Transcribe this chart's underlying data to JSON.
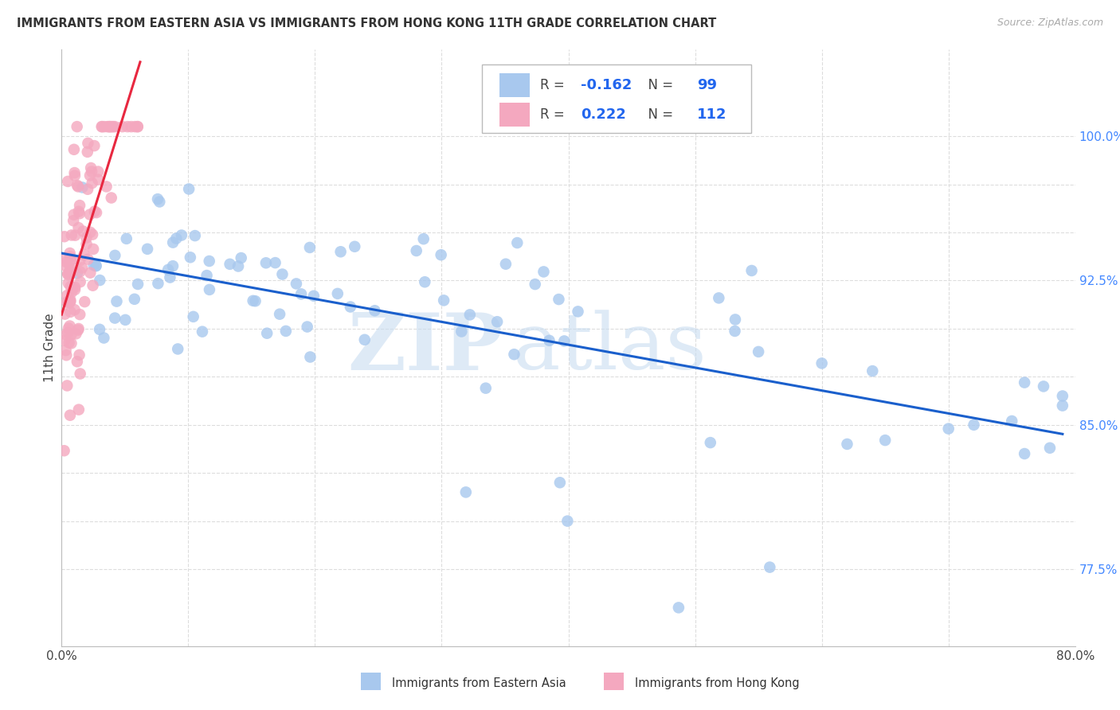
{
  "title": "IMMIGRANTS FROM EASTERN ASIA VS IMMIGRANTS FROM HONG KONG 11TH GRADE CORRELATION CHART",
  "source": "Source: ZipAtlas.com",
  "ylabel": "11th Grade",
  "R_blue": -0.162,
  "N_blue": 99,
  "R_pink": 0.222,
  "N_pink": 112,
  "blue_color": "#A8C8EE",
  "pink_color": "#F4A8BF",
  "blue_line_color": "#1A5FCC",
  "pink_line_color": "#E82840",
  "watermark_zip": "ZIP",
  "watermark_atlas": "atlas",
  "background_color": "#FFFFFF",
  "grid_color": "#DDDDDD",
  "legend_blue_label": "Immigrants from Eastern Asia",
  "legend_pink_label": "Immigrants from Hong Kong",
  "xlim": [
    0.0,
    0.8
  ],
  "ylim": [
    0.735,
    1.045
  ],
  "y_ticks": [
    0.775,
    0.8,
    0.825,
    0.85,
    0.875,
    0.9,
    0.925,
    0.95,
    0.975,
    1.0
  ],
  "y_tick_labels": [
    "",
    "",
    "",
    "",
    "",
    "",
    "92.5%",
    "",
    "",
    "100.0%"
  ],
  "y_tick_labels_right": [
    "77.5%",
    "",
    "",
    "85.0%",
    "",
    "",
    "92.5%",
    "",
    "",
    "100.0%"
  ],
  "x_tick_labels": [
    "0.0%",
    "",
    "",
    "",
    "",
    "",
    "",
    "",
    "80.0%"
  ]
}
